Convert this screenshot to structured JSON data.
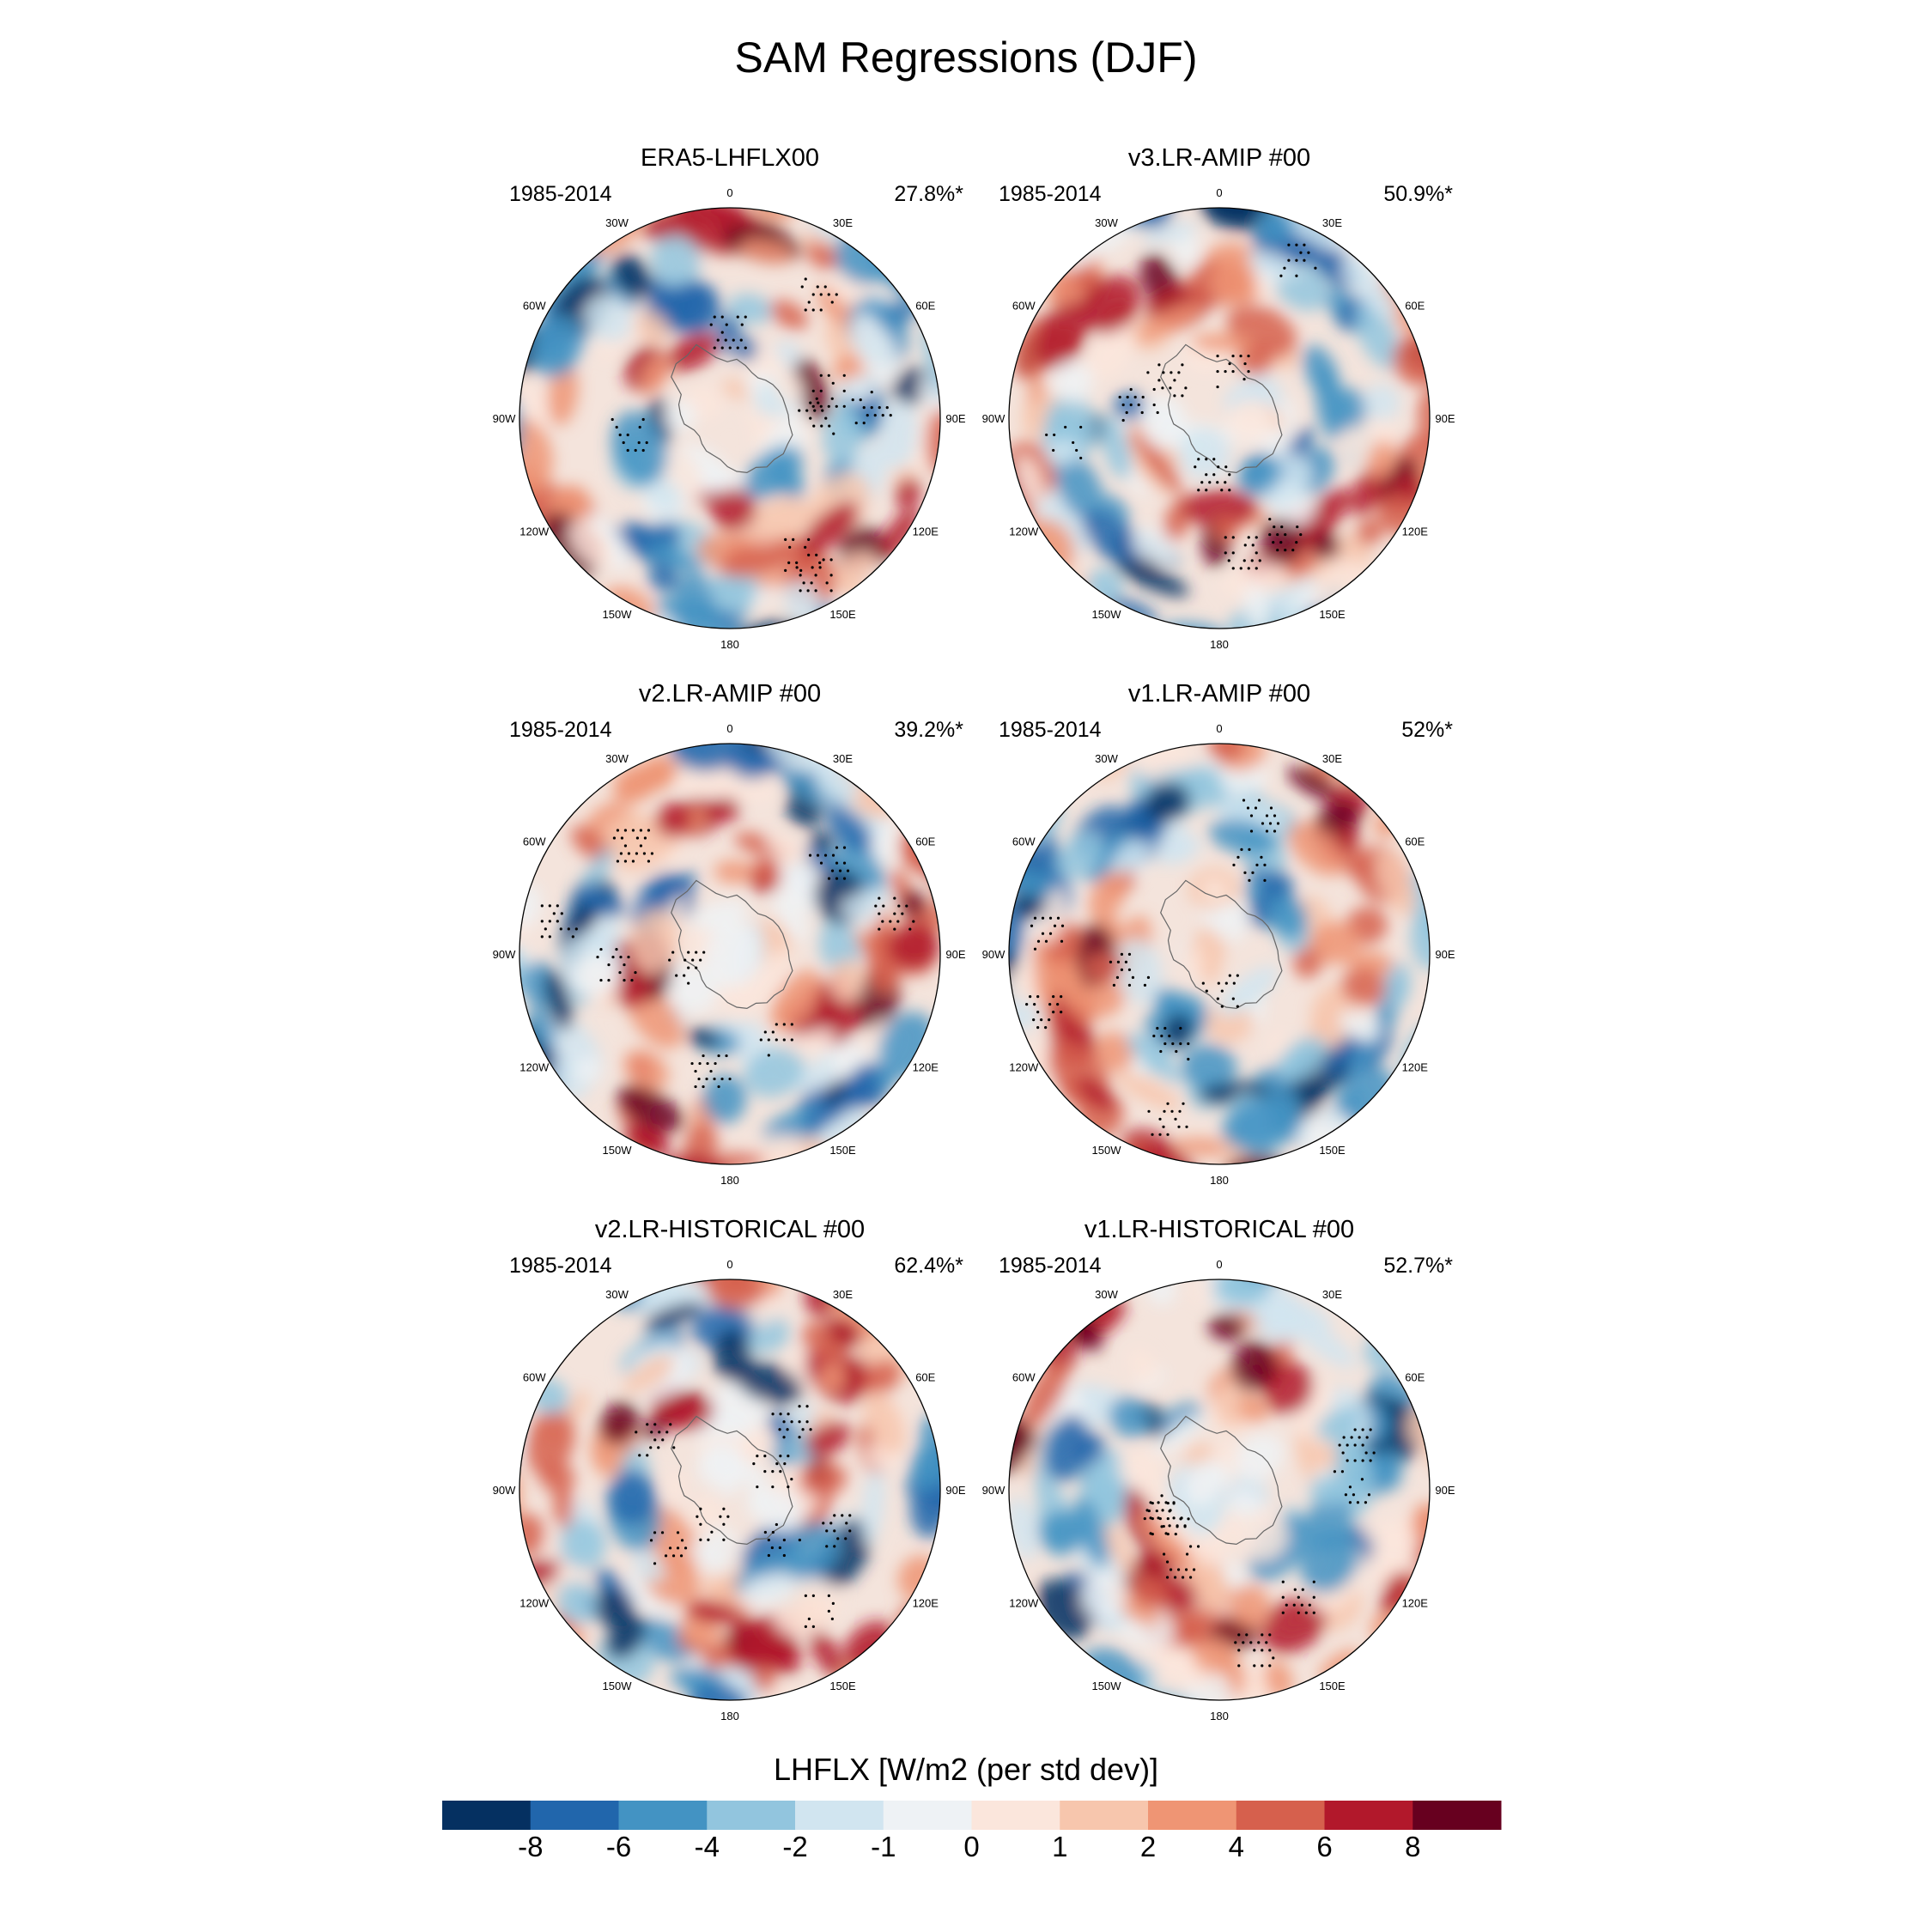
{
  "title": "SAM Regressions (DJF)",
  "panels": [
    {
      "id": "p1",
      "title": "ERA5-LHFLX00",
      "period": "1985-2014",
      "percent": "27.8%*"
    },
    {
      "id": "p2",
      "title": "v3.LR-AMIP  #00",
      "period": "1985-2014",
      "percent": "50.9%*"
    },
    {
      "id": "p3",
      "title": "v2.LR-AMIP  #00",
      "period": "1985-2014",
      "percent": "39.2%*"
    },
    {
      "id": "p4",
      "title": "v1.LR-AMIP  #00",
      "period": "1985-2014",
      "percent": "52%*"
    },
    {
      "id": "p5",
      "title": "v2.LR-HISTORICAL  #00",
      "period": "1985-2014",
      "percent": "62.4%*"
    },
    {
      "id": "p6",
      "title": "v1.LR-HISTORICAL  #00",
      "period": "1985-2014",
      "percent": "52.7%*"
    }
  ],
  "longitude_labels": [
    "0",
    "30E",
    "60E",
    "90E",
    "120E",
    "150E",
    "180",
    "150W",
    "120W",
    "90W",
    "60W",
    "30W"
  ],
  "colorbar": {
    "title": "LHFLX [W/m2 (per std dev)]",
    "ticks": [
      "-8",
      "-6",
      "-4",
      "-2",
      "-1",
      "0",
      "1",
      "2",
      "4",
      "6",
      "8"
    ],
    "colors": [
      "#053061",
      "#2166ac",
      "#4393c3",
      "#92c5de",
      "#d1e5f0",
      "#eef2f5",
      "#fbe6dc",
      "#f7c6ad",
      "#ef9574",
      "#d6604d",
      "#b2182b",
      "#67001f"
    ]
  },
  "chart_data": {
    "type": "heatmap",
    "title": "SAM Regressions (DJF)",
    "projection": "south polar stereographic",
    "variable": "LHFLX [W/m2 (per std dev)]",
    "levels": [
      -8,
      -6,
      -4,
      -2,
      -1,
      0,
      1,
      2,
      4,
      6,
      8
    ],
    "panels": [
      {
        "name": "ERA5-LHFLX00",
        "period": "1985-2014",
        "variance_explained": "27.8%*"
      },
      {
        "name": "v3.LR-AMIP  #00",
        "period": "1985-2014",
        "variance_explained": "50.9%*"
      },
      {
        "name": "v2.LR-AMIP  #00",
        "period": "1985-2014",
        "variance_explained": "39.2%*"
      },
      {
        "name": "v1.LR-AMIP  #00",
        "period": "1985-2014",
        "variance_explained": "52%*"
      },
      {
        "name": "v2.LR-HISTORICAL  #00",
        "period": "1985-2014",
        "variance_explained": "62.4%*"
      },
      {
        "name": "v1.LR-HISTORICAL  #00",
        "period": "1985-2014",
        "variance_explained": "52.7%*"
      }
    ]
  }
}
